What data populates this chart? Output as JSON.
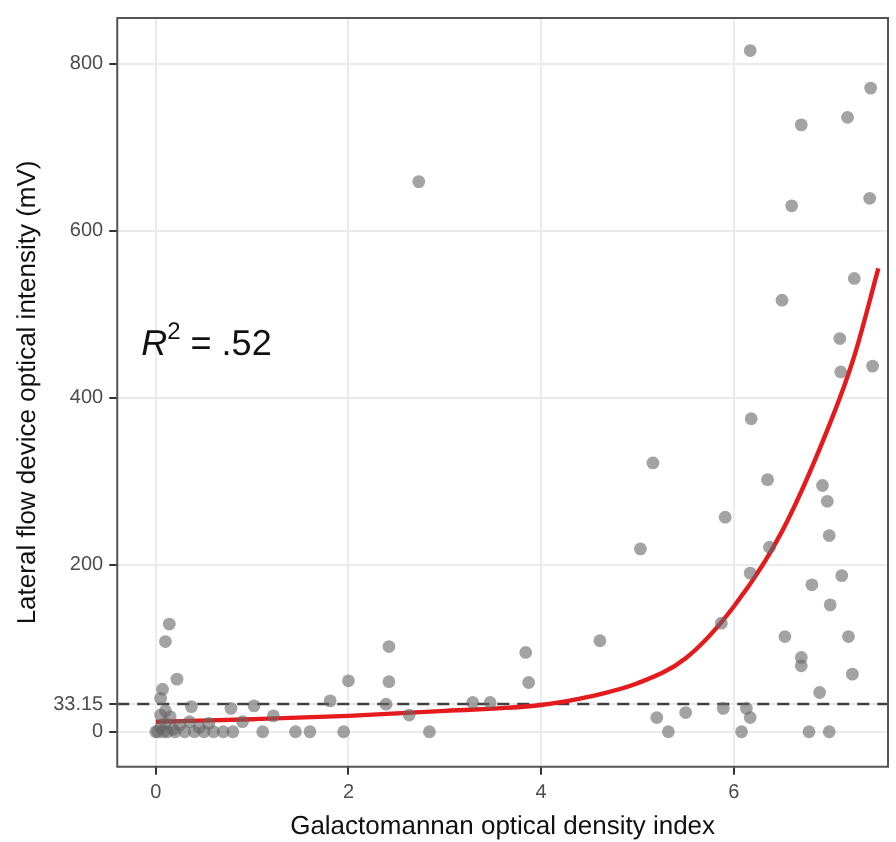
{
  "chart_data": {
    "type": "scatter",
    "xlabel": "Galactomannan optical density index",
    "ylabel": "Lateral flow device optical intensity (mV)",
    "annotations": [
      "R$^{2}$ = .52"
    ],
    "xlim": [
      -0.4,
      7.6
    ],
    "ylim": [
      -42,
      855
    ],
    "xticks": [
      0,
      2,
      4,
      6
    ],
    "yticks": [
      0,
      33.15,
      200,
      400,
      600,
      800
    ],
    "grid": true,
    "legend": false,
    "ref_lines": [
      {
        "axis": "y",
        "value": 33.15,
        "line_style": "dashed",
        "color": "#404040"
      }
    ],
    "series": [
      {
        "marker": "circle",
        "color": "#666666",
        "x": [
          6.17,
          7.42,
          6.7,
          7.18,
          2.73,
          6.6,
          7.41,
          7.25,
          6.5,
          7.1,
          7.11,
          7.44,
          6.18,
          5.16,
          6.35,
          6.92,
          6.97,
          5.91,
          6.99,
          5.03,
          6.37,
          6.17,
          7.12,
          6.81,
          7.0,
          5.87,
          6.53,
          7.19,
          4.61,
          3.84,
          2.42,
          0.14,
          0.1,
          6.7,
          6.7,
          7.23,
          2.0,
          2.42,
          3.87,
          0.22,
          6.89,
          0.07,
          1.81,
          2.39,
          3.29,
          3.47,
          2.63,
          5.2,
          5.5,
          5.89,
          6.13,
          6.17,
          5.32,
          6.08,
          6.78,
          6.99,
          2.84,
          1.95,
          1.45,
          1.6,
          1.11,
          1.02,
          1.22,
          0.78,
          0.37,
          0,
          0.02,
          0.05,
          0.08,
          0.1,
          0.12,
          0.15,
          0.18,
          0.2,
          0.25,
          0.3,
          0.35,
          0.4,
          0.45,
          0.5,
          0.55,
          0.6,
          0.7,
          0.8,
          0.05,
          0.1,
          0.9,
          0.05
        ],
        "values": [
          816,
          771,
          727,
          736,
          659,
          630,
          639,
          543,
          517,
          471,
          431,
          438,
          375,
          322,
          302,
          295,
          276,
          257,
          235,
          219,
          221,
          190,
          187,
          176,
          152,
          130,
          114,
          114,
          109,
          95,
          102,
          129,
          108,
          89,
          79,
          69,
          61,
          60,
          59,
          63,
          47,
          51,
          37,
          33,
          35,
          35,
          20,
          17,
          23,
          28,
          28,
          17,
          0,
          0,
          0,
          0,
          0,
          0,
          0,
          0,
          0,
          31,
          19,
          28,
          30,
          0,
          0,
          5,
          0,
          10,
          0,
          18,
          3,
          0,
          8,
          0,
          12,
          0,
          5,
          0,
          10,
          0,
          0,
          0,
          40,
          25,
          12,
          20
        ]
      },
      {
        "type": "line",
        "marker": "none",
        "color": "#e41a1c",
        "x": [
          0,
          1,
          2,
          3,
          4,
          4.5,
          5,
          5.5,
          6,
          6.5,
          7,
          7.25,
          7.5
        ],
        "values": [
          12,
          15,
          19,
          25,
          32,
          42,
          58,
          88,
          150,
          240,
          370,
          450,
          555
        ]
      }
    ]
  }
}
